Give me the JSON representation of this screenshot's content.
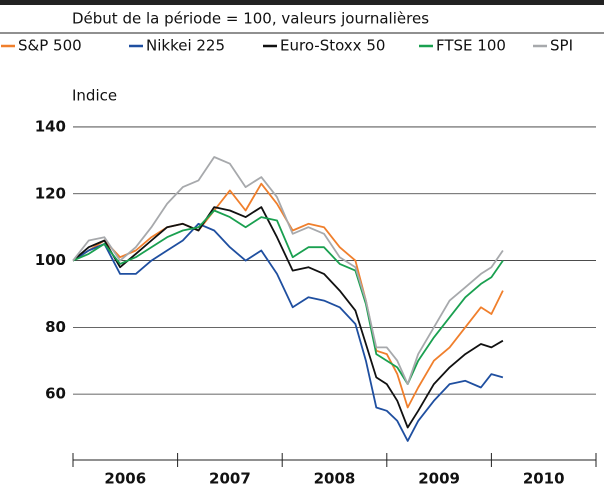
{
  "chart_data": {
    "type": "line",
    "subtitle": "Début de la période = 100, valeurs journalières",
    "y_label": "Indice",
    "x": [
      2006.0,
      2006.15,
      2006.3,
      2006.45,
      2006.6,
      2006.75,
      2006.9,
      2007.05,
      2007.2,
      2007.35,
      2007.5,
      2007.65,
      2007.8,
      2007.95,
      2008.1,
      2008.25,
      2008.4,
      2008.55,
      2008.7,
      2008.8,
      2008.9,
      2009.0,
      2009.1,
      2009.2,
      2009.3,
      2009.45,
      2009.6,
      2009.75,
      2009.9,
      2010.0,
      2010.11
    ],
    "series": [
      {
        "name": "S&P 500",
        "color": "#f07f2c",
        "values": [
          100,
          103,
          106,
          101,
          103,
          107,
          110,
          111,
          109,
          115,
          121,
          115,
          123,
          117,
          109,
          111,
          110,
          104,
          100,
          88,
          73,
          72,
          66,
          56,
          62,
          70,
          74,
          80,
          86,
          84,
          91
        ]
      },
      {
        "name": "Nikkei 225",
        "color": "#1f4fa0",
        "values": [
          100,
          103,
          105,
          96,
          96,
          100,
          103,
          106,
          111,
          109,
          104,
          100,
          103,
          96,
          86,
          89,
          88,
          86,
          81,
          70,
          56,
          55,
          52,
          46,
          52,
          58,
          63,
          64,
          62,
          66,
          65
        ]
      },
      {
        "name": "Euro-Stoxx 50",
        "color": "#111111",
        "values": [
          100,
          104,
          106,
          98,
          102,
          106,
          110,
          111,
          109,
          116,
          115,
          113,
          116,
          107,
          97,
          98,
          96,
          91,
          85,
          75,
          65,
          63,
          58,
          50,
          55,
          63,
          68,
          72,
          75,
          74,
          76
        ]
      },
      {
        "name": "FTSE 100",
        "color": "#1aa050",
        "values": [
          100,
          102,
          105,
          99,
          101,
          104,
          107,
          109,
          110,
          115,
          113,
          110,
          113,
          112,
          101,
          104,
          104,
          99,
          97,
          87,
          72,
          70,
          68,
          63,
          70,
          77,
          83,
          89,
          93,
          95,
          100
        ]
      },
      {
        "name": "SPI",
        "color": "#a7a9ac",
        "values": [
          100,
          106,
          107,
          100,
          104,
          110,
          117,
          122,
          124,
          131,
          129,
          122,
          125,
          119,
          108,
          110,
          108,
          101,
          98,
          88,
          74,
          74,
          70,
          63,
          72,
          80,
          88,
          92,
          96,
          98,
          103
        ]
      }
    ],
    "xlim": [
      2006,
      2011
    ],
    "xticks": [
      {
        "value": 2006.5,
        "label": "2006"
      },
      {
        "value": 2007.5,
        "label": "2007"
      },
      {
        "value": 2008.5,
        "label": "2008"
      },
      {
        "value": 2009.5,
        "label": "2009"
      },
      {
        "value": 2010.5,
        "label": "2010"
      }
    ],
    "xtick_marks": [
      2006,
      2007,
      2008,
      2009,
      2010,
      2011
    ],
    "ylim": [
      46,
      144
    ],
    "yticks": [
      60,
      80,
      100,
      120,
      140
    ],
    "grid": true
  }
}
